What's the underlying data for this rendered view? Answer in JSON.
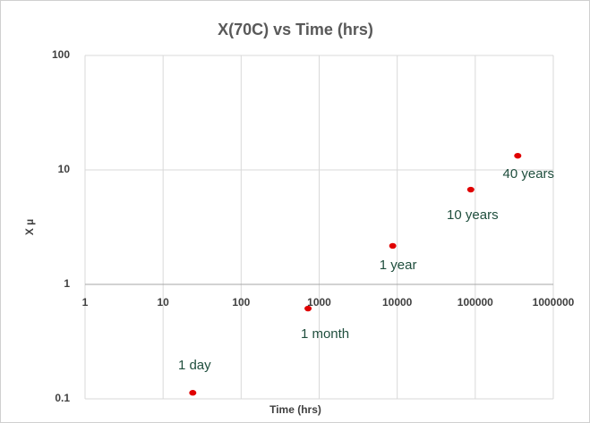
{
  "chart_data": {
    "type": "scatter",
    "title": "X(70C) vs Time (hrs)",
    "x_label": "Time (hrs)",
    "y_label": "X µ",
    "x": [
      24,
      720,
      8760,
      87600,
      350400
    ],
    "values": [
      0.113,
      0.615,
      2.17,
      6.73,
      13.3
    ],
    "labels": [
      "1 day",
      "1 month",
      "1 year",
      "10 years",
      "40 years"
    ],
    "color": "#e00000",
    "xlog": true,
    "ylog": true,
    "xlim": [
      1,
      1000000
    ],
    "xticks": [
      1,
      10,
      100,
      1000,
      10000,
      100000,
      1000000
    ],
    "ylim": [
      0.1,
      100
    ],
    "yticks": [
      0.1,
      1,
      10,
      100
    ],
    "grid": true
  }
}
